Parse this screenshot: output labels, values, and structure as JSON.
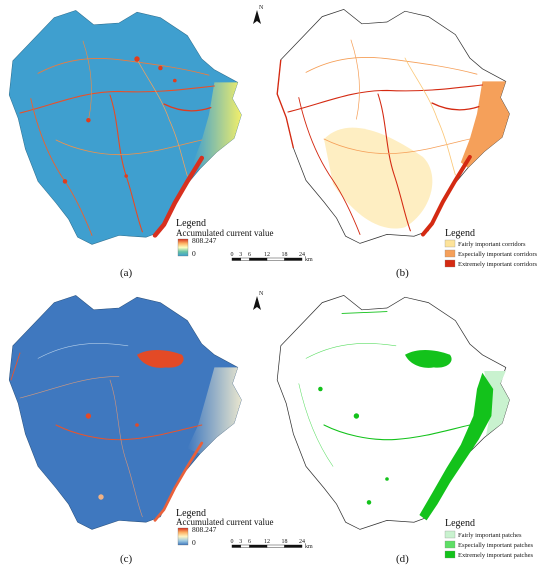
{
  "north_label": "N",
  "scale_bar": {
    "ticks": [
      "0",
      "3",
      "6",
      "12",
      "18",
      "24"
    ],
    "unit": "km"
  },
  "panels": [
    {
      "id": "a",
      "label": "(a)",
      "style": "current",
      "base_color": "#3f9fcf",
      "legend": {
        "title": "Legend",
        "subtitle": "Accumulated current value",
        "max": "808.247",
        "min": "0",
        "gradient": [
          "#d7301f",
          "#fdae61",
          "#ffffbf",
          "#66c2a5",
          "#3f9fcf"
        ]
      }
    },
    {
      "id": "b",
      "label": "(b)",
      "style": "corridors",
      "legend": {
        "title": "Legend",
        "items": [
          {
            "label": "Fairly important corridors",
            "color": "#fde39a"
          },
          {
            "label": "Especially important corridors",
            "color": "#f5a05a"
          },
          {
            "label": "Extremely important corridors",
            "color": "#d42a12"
          }
        ]
      }
    },
    {
      "id": "c",
      "label": "(c)",
      "style": "current",
      "base_color": "#3f78bf",
      "legend": {
        "title": "Legend",
        "subtitle": "Accumulated current value",
        "max": "808.247",
        "min": "0",
        "gradient": [
          "#d7301f",
          "#fdae61",
          "#fff4c2",
          "#9ecae1",
          "#3f78bf"
        ]
      }
    },
    {
      "id": "d",
      "label": "(d)",
      "style": "patches",
      "legend": {
        "title": "Legend",
        "items": [
          {
            "label": "Fairly important patches",
            "color": "#c9f2cf"
          },
          {
            "label": "Especially important patches",
            "color": "#5ede66"
          },
          {
            "label": "Extremely important patches",
            "color": "#13c21b"
          }
        ]
      }
    }
  ]
}
